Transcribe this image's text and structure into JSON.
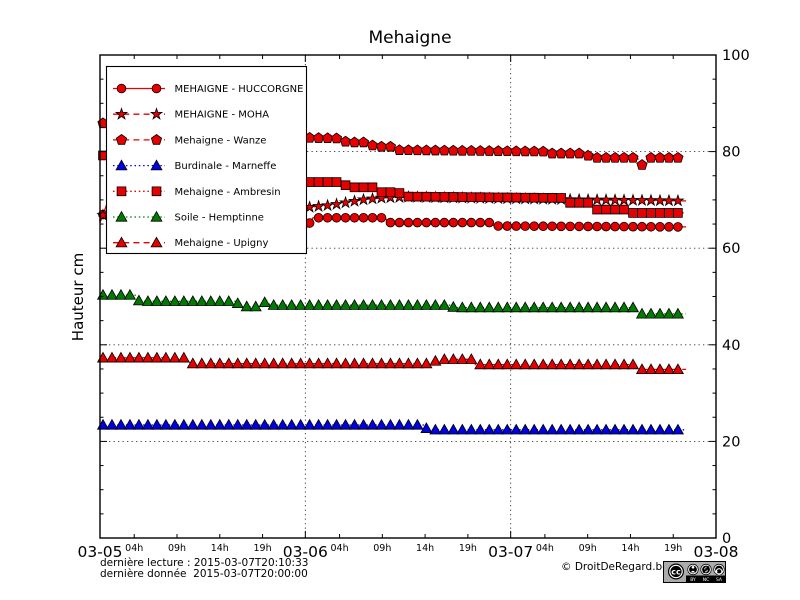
{
  "footer": {
    "last_reading": "dernière lecture : 2015-03-07T20:10:33",
    "last_data": "dernière donnée  2015-03-07T20:00:00",
    "copyright": "© DroitDeRegard.be",
    "cc_badge_labels": [
      "BY",
      "NC",
      "SA"
    ],
    "cc_badge_symbol": "cc"
  },
  "chart_data": {
    "type": "line",
    "title": "Mehaigne",
    "x_axis": {
      "start_day": "2015-03-05",
      "span_hours": 72,
      "day_labels": [
        "03-05",
        "03-06",
        "03-07",
        "03-08"
      ],
      "day_positions_hours": [
        0,
        24,
        48,
        72
      ],
      "hour_labels": [
        "04h",
        "09h",
        "14h",
        "19h"
      ],
      "hour_offsets": [
        4,
        9,
        14,
        19
      ],
      "grid_at_hours": [
        24,
        48
      ]
    },
    "y_axis": {
      "label": "Hauteur cm",
      "min": 0,
      "max": 100,
      "major_ticks": [
        0,
        20,
        40,
        60,
        80,
        100
      ],
      "minor_tick_step": 5,
      "grid_at": [
        20,
        40,
        60,
        80
      ],
      "labels_side": "right"
    },
    "legend_position": "upper-left",
    "marker_start_hour": 0.35,
    "marker_interval_hours": 1.05,
    "marker_end_hour": 68.5,
    "series": [
      {
        "name": "MEHAIGNE - HUCCORGNE",
        "color": "#e60000",
        "marker": "circle",
        "line": "solid",
        "points": [
          [
            0,
            65.3
          ],
          [
            0.9,
            69.6
          ],
          [
            4,
            69.3
          ],
          [
            22,
            66.5
          ],
          [
            24.2,
            64.4
          ],
          [
            24.9,
            66.3
          ],
          [
            33.3,
            66.3
          ],
          [
            33.8,
            65.3
          ],
          [
            45.6,
            65.3
          ],
          [
            46.1,
            64.6
          ],
          [
            68.5,
            64.4
          ]
        ]
      },
      {
        "name": "MEHAIGNE - MOHA",
        "color": "#e60000",
        "marker": "star",
        "line": "dashed",
        "points": [
          [
            0,
            66.8
          ],
          [
            12,
            67.2
          ],
          [
            22,
            68.2
          ],
          [
            24,
            68.4
          ],
          [
            27,
            68.9
          ],
          [
            29,
            69.5
          ],
          [
            31,
            70.1
          ],
          [
            33,
            70.4
          ],
          [
            36,
            70.6
          ],
          [
            42,
            70.4
          ],
          [
            50,
            70.2
          ],
          [
            58,
            70.0
          ],
          [
            68.5,
            69.8
          ]
        ]
      },
      {
        "name": "Mehaigne - Wanze",
        "color": "#e60000",
        "marker": "pentagon",
        "line": "dashed",
        "points": [
          [
            0,
            85.9
          ],
          [
            1.5,
            85.7
          ],
          [
            23,
            82.9
          ],
          [
            28.3,
            82.7
          ],
          [
            28.8,
            81.9
          ],
          [
            31.5,
            81.9
          ],
          [
            32,
            81
          ],
          [
            34.3,
            81
          ],
          [
            34.8,
            80.3
          ],
          [
            51.8,
            80
          ],
          [
            52.3,
            79.6
          ],
          [
            56.8,
            79.6
          ],
          [
            57.3,
            78.7
          ],
          [
            62.8,
            78.7
          ],
          [
            63.4,
            77.1
          ],
          [
            64,
            78.7
          ],
          [
            68.5,
            78.7
          ]
        ]
      },
      {
        "name": "Burdinale - Marneffe",
        "color": "#0000e0",
        "marker": "triangle",
        "line": "dotted",
        "points": [
          [
            0,
            23.4
          ],
          [
            37.8,
            23.4
          ],
          [
            38.3,
            22.4
          ],
          [
            68.5,
            22.4
          ]
        ]
      },
      {
        "name": "Mehaigne - Ambresin",
        "color": "#e60000",
        "marker": "square",
        "line": "dotted",
        "points": [
          [
            0,
            79.3
          ],
          [
            23,
            73.7
          ],
          [
            28.4,
            73.7
          ],
          [
            28.9,
            72.6
          ],
          [
            31.9,
            72.6
          ],
          [
            32.4,
            71.6
          ],
          [
            34.9,
            71.6
          ],
          [
            35.4,
            70.7
          ],
          [
            54.3,
            70.4
          ],
          [
            54.8,
            69.4
          ],
          [
            57.3,
            69.4
          ],
          [
            57.8,
            68
          ],
          [
            61.3,
            68
          ],
          [
            61.8,
            67.3
          ],
          [
            68.5,
            67.3
          ]
        ]
      },
      {
        "name": "Soile - Hemptinne",
        "color": "#007a00",
        "marker": "triangle",
        "line": "dotted",
        "points": [
          [
            0,
            50.3
          ],
          [
            4.1,
            50.3
          ],
          [
            4.6,
            49
          ],
          [
            15.9,
            49
          ],
          [
            16.4,
            47.9
          ],
          [
            19,
            47.9
          ],
          [
            19.4,
            49.3
          ],
          [
            19.9,
            48.2
          ],
          [
            40.9,
            48.2
          ],
          [
            41.4,
            47.7
          ],
          [
            62.4,
            47.7
          ],
          [
            62.9,
            46.4
          ],
          [
            68.5,
            46.4
          ]
        ]
      },
      {
        "name": "Mehaigne - Upigny",
        "color": "#e60000",
        "marker": "triangle",
        "line": "dashed",
        "points": [
          [
            0,
            37.3
          ],
          [
            10.1,
            37.3
          ],
          [
            10.6,
            36.1
          ],
          [
            38.9,
            36.1
          ],
          [
            39.4,
            37
          ],
          [
            43.4,
            37
          ],
          [
            43.9,
            35.9
          ],
          [
            62.4,
            35.9
          ],
          [
            62.9,
            34.9
          ],
          [
            68.5,
            34.9
          ]
        ]
      }
    ]
  }
}
